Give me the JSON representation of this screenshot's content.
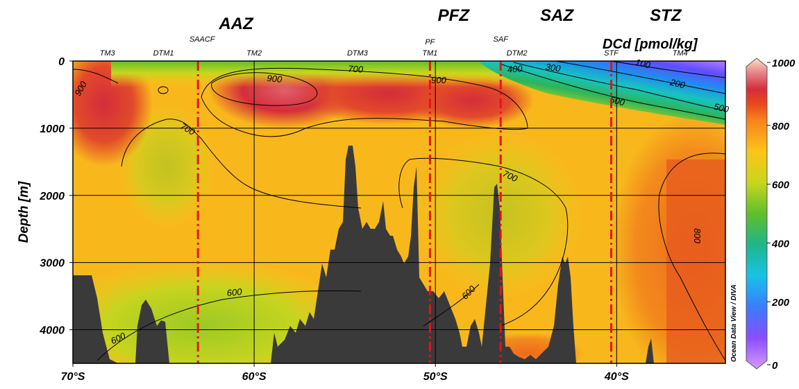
{
  "chart_data": {
    "type": "heatmap",
    "title": "DCd [pmol/kg]",
    "xlabel": "",
    "ylabel": "Depth [m]",
    "xlim": [
      70,
      34
    ],
    "ylim": [
      0,
      4500
    ],
    "x_ticks": [
      70,
      60,
      50,
      40
    ],
    "x_tick_labels": [
      "70°S",
      "60°S",
      "50°S",
      "40°S"
    ],
    "y_ticks": [
      0,
      1000,
      2000,
      3000,
      4000
    ],
    "y_tick_labels": [
      "0",
      "1000",
      "2000",
      "3000",
      "4000"
    ],
    "grid": true,
    "colorbar": {
      "min": 0,
      "max": 1000,
      "ticks": [
        0,
        200,
        400,
        600,
        800,
        1000
      ],
      "tick_labels": [
        "0",
        "200",
        "400",
        "600",
        "800",
        "1000"
      ],
      "stops": [
        {
          "value": 0,
          "color": "#d29bff"
        },
        {
          "value": 100,
          "color": "#8a4dff"
        },
        {
          "value": 200,
          "color": "#3a7dff"
        },
        {
          "value": 300,
          "color": "#17c3e6"
        },
        {
          "value": 400,
          "color": "#1fb58c"
        },
        {
          "value": 500,
          "color": "#5fbf2a"
        },
        {
          "value": 600,
          "color": "#c8d61e"
        },
        {
          "value": 700,
          "color": "#fcc419"
        },
        {
          "value": 800,
          "color": "#f7841b"
        },
        {
          "value": 850,
          "color": "#ea4a1c"
        },
        {
          "value": 900,
          "color": "#d42d3a"
        },
        {
          "value": 950,
          "color": "#e57d86"
        },
        {
          "value": 1000,
          "color": "#fbe1c5"
        }
      ]
    },
    "zones": [
      {
        "label": "AAZ",
        "lat": 61
      },
      {
        "label": "PFZ",
        "lat": 49
      },
      {
        "label": "SAZ",
        "lat": 43.3
      },
      {
        "label": "STZ",
        "lat": 37.3
      }
    ],
    "fronts": [
      {
        "label": "SAACF",
        "lat": 63.1
      },
      {
        "label": "PF",
        "lat": 50.3
      },
      {
        "label": "SAF",
        "lat": 46.4
      },
      {
        "label": "STF",
        "lat": 40.3
      }
    ],
    "stations": [
      {
        "label": "TM3",
        "lat": 68.1
      },
      {
        "label": "DTM1",
        "lat": 65.0
      },
      {
        "label": "TM2",
        "lat": 60.0
      },
      {
        "label": "DTM3",
        "lat": 54.3
      },
      {
        "label": "TM1",
        "lat": 50.3
      },
      {
        "label": "DTM2",
        "lat": 45.5
      },
      {
        "label": "TM4",
        "lat": 36.5
      }
    ],
    "contour_labels": [
      "100",
      "200",
      "300",
      "400",
      "500",
      "600",
      "700",
      "800",
      "900"
    ],
    "credit": "Ocean Data View / DIVA",
    "bathymetry_note": "seafloor (masked)"
  }
}
